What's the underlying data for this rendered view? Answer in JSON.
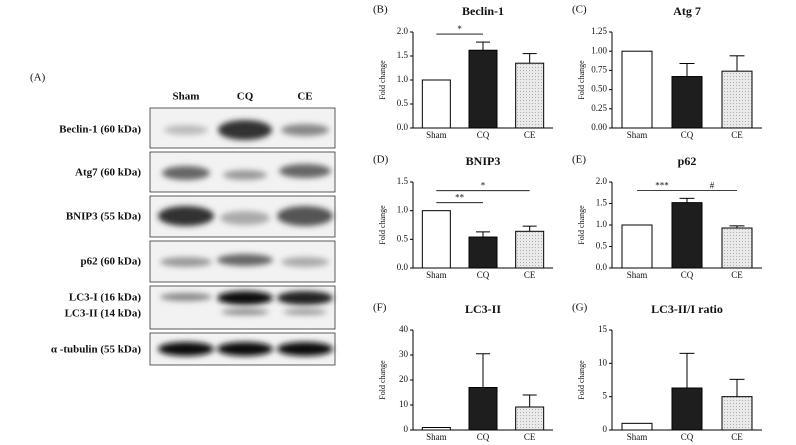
{
  "blot": {
    "panel": "(A)",
    "columns": [
      "Sham",
      "CQ",
      "CE"
    ],
    "rows": [
      "Beclin-1 (60 kDa)",
      "Atg7 (60 kDa)",
      "BNIP3  (55 kDa)",
      "p62 (60 kDa)",
      "LC3-I (16 kDa)",
      "LC3-II (14 kDa)",
      "α -tubulin (55 kDa)"
    ]
  },
  "chart_data": [
    {
      "type": "bar",
      "panel": "(B)",
      "title": "Beclin-1",
      "ylabel": "Fold change",
      "categories": [
        "Sham",
        "CQ",
        "CE"
      ],
      "values": [
        1.0,
        1.62,
        1.35
      ],
      "errors": [
        0,
        0.17,
        0.2
      ],
      "colors": [
        "#ffffff",
        "#1e1e1e",
        "#e2e2e2"
      ],
      "ylim": [
        0,
        2.0
      ],
      "yticks": [
        {
          "value": 0,
          "label": "0.0"
        },
        {
          "value": 0.5,
          "label": "0.5"
        },
        {
          "value": 1,
          "label": "1.0"
        },
        {
          "value": 1.5,
          "label": "1.5"
        },
        {
          "value": 2,
          "label": "2.0"
        }
      ],
      "comparisons": [
        {
          "label": "*",
          "pair": [
            0,
            1
          ]
        }
      ]
    },
    {
      "type": "bar",
      "panel": "(C)",
      "title": "Atg 7",
      "ylabel": "Fold change",
      "categories": [
        "Sham",
        "CQ",
        "CE"
      ],
      "values": [
        1.0,
        0.67,
        0.74
      ],
      "errors": [
        0,
        0.17,
        0.2
      ],
      "colors": [
        "#ffffff",
        "#1e1e1e",
        "#e2e2e2"
      ],
      "ylim": [
        0,
        1.25
      ],
      "yticks": [
        {
          "value": 0,
          "label": "0.00"
        },
        {
          "value": 0.25,
          "label": "0.25"
        },
        {
          "value": 0.5,
          "label": "0.50"
        },
        {
          "value": 0.75,
          "label": "0.75"
        },
        {
          "value": 1,
          "label": "1.00"
        },
        {
          "value": 1.25,
          "label": "1.25"
        }
      ],
      "comparisons": []
    },
    {
      "type": "bar",
      "panel": "(D)",
      "title": "BNIP3",
      "ylabel": "Fold change",
      "categories": [
        "Sham",
        "CQ",
        "CE"
      ],
      "values": [
        1.0,
        0.54,
        0.64
      ],
      "errors": [
        0,
        0.09,
        0.09
      ],
      "colors": [
        "#ffffff",
        "#1e1e1e",
        "#e2e2e2"
      ],
      "ylim": [
        0,
        1.5
      ],
      "yticks": [
        {
          "value": 0,
          "label": "0.0"
        },
        {
          "value": 0.5,
          "label": "0.5"
        },
        {
          "value": 1,
          "label": "1.0"
        },
        {
          "value": 1.5,
          "label": "1.5"
        }
      ],
      "comparisons": [
        {
          "label": "**",
          "pair": [
            0,
            1
          ]
        },
        {
          "label": "*",
          "pair": [
            0,
            2
          ]
        }
      ]
    },
    {
      "type": "bar",
      "panel": "(E)",
      "title": "p62",
      "ylabel": "Fold change",
      "categories": [
        "Sham",
        "CQ",
        "CE"
      ],
      "values": [
        1.0,
        1.52,
        0.93
      ],
      "errors": [
        0,
        0.1,
        0.05
      ],
      "colors": [
        "#ffffff",
        "#1e1e1e",
        "#e2e2e2"
      ],
      "ylim": [
        0,
        2.0
      ],
      "yticks": [
        {
          "value": 0,
          "label": "0.0"
        },
        {
          "value": 0.5,
          "label": "0.5"
        },
        {
          "value": 1,
          "label": "1.0"
        },
        {
          "value": 1.5,
          "label": "1.5"
        },
        {
          "value": 2,
          "label": "2.0"
        }
      ],
      "comparisons": [
        {
          "label": "***",
          "pair": [
            0,
            1
          ]
        },
        {
          "label": "#",
          "pair": [
            1,
            2
          ]
        }
      ]
    },
    {
      "type": "bar",
      "panel": "(F)",
      "title": "LC3-II",
      "ylabel": "Fold change",
      "categories": [
        "Sham",
        "CQ",
        "CE"
      ],
      "values": [
        1.0,
        17,
        9.2
      ],
      "errors": [
        0,
        13.5,
        4.8
      ],
      "colors": [
        "#ffffff",
        "#1e1e1e",
        "#e2e2e2"
      ],
      "ylim": [
        0,
        40
      ],
      "yticks": [
        0,
        10,
        20,
        30,
        40
      ],
      "comparisons": []
    },
    {
      "type": "bar",
      "panel": "(G)",
      "title": "LC3-II/I ratio",
      "ylabel": "Fold change",
      "categories": [
        "Sham",
        "CQ",
        "CE"
      ],
      "values": [
        1.0,
        6.3,
        5.0
      ],
      "errors": [
        0,
        5.2,
        2.6
      ],
      "colors": [
        "#ffffff",
        "#1e1e1e",
        "#e2e2e2"
      ],
      "ylim": [
        0,
        15
      ],
      "yticks": [
        0,
        5,
        10,
        15
      ],
      "comparisons": []
    }
  ]
}
